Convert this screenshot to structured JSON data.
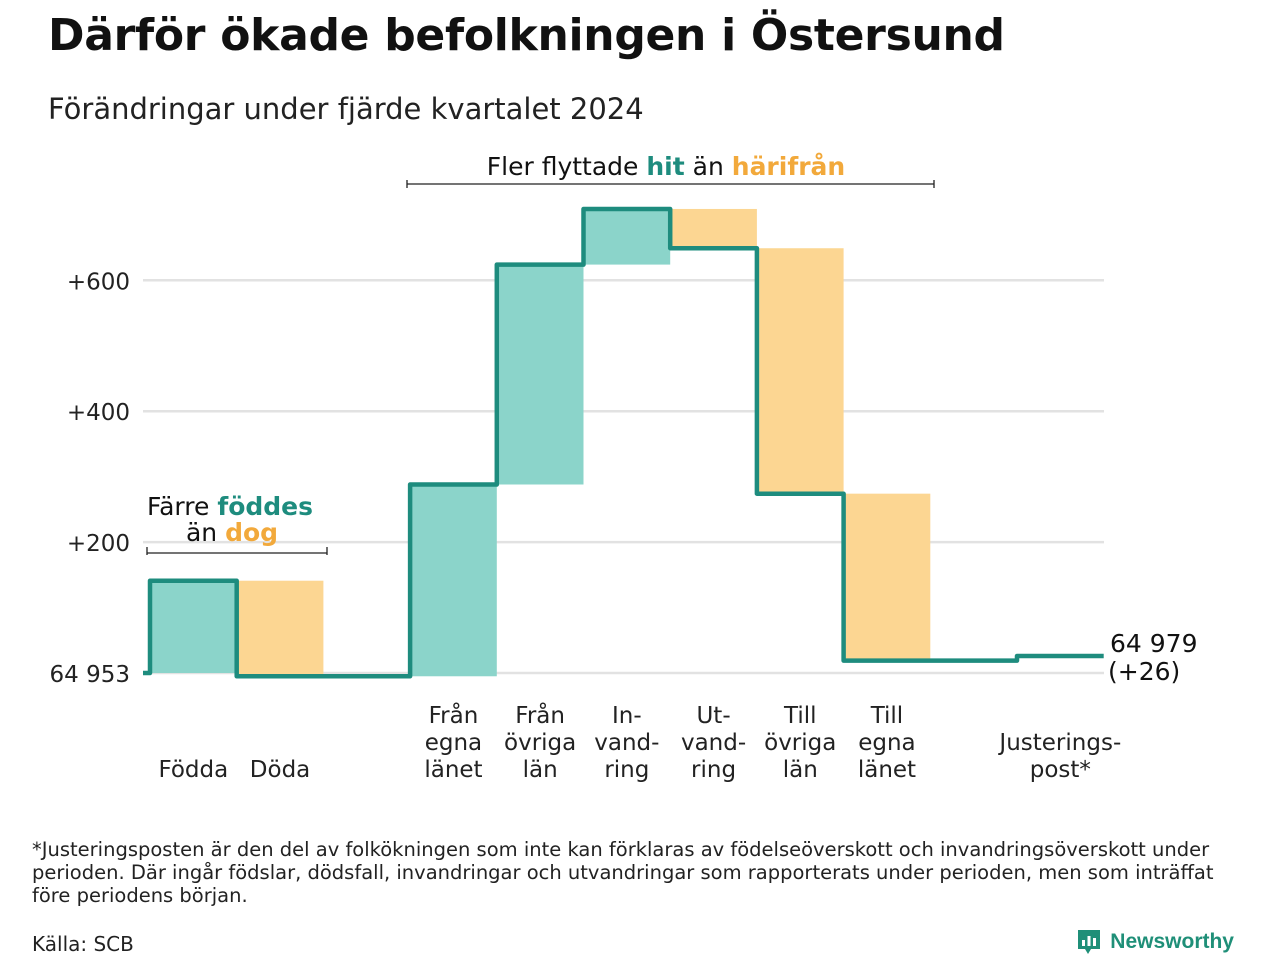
{
  "title": "Därför ökade befolkningen i Östersund",
  "subtitle": "Förändringar under fjärde kvartalet 2024",
  "colors": {
    "inflow": "#8bd4ca",
    "outflow": "#fcd692",
    "line": "#1e8c7e",
    "grid": "#e2e2e2",
    "hit": "#1e8c7e",
    "harifran": "#f2a93b"
  },
  "chart_data": {
    "type": "waterfall",
    "baseline": 64953,
    "baseline_label": "64 953",
    "ylim": [
      0,
      700
    ],
    "yticks": [
      {
        "value": 200,
        "label": "+200"
      },
      {
        "value": 400,
        "label": "+400"
      },
      {
        "value": 600,
        "label": "+600"
      }
    ],
    "steps": [
      {
        "category": "Födda",
        "lines": [
          "Födda"
        ],
        "kind": "in",
        "change": 141
      },
      {
        "category": "Döda",
        "lines": [
          "Döda"
        ],
        "kind": "out",
        "change": -146
      },
      {
        "category": "Från egna länet",
        "lines": [
          "Från",
          "egna",
          "länet"
        ],
        "kind": "in",
        "change": 293
      },
      {
        "category": "Från övriga län",
        "lines": [
          "Från",
          "övriga",
          "län"
        ],
        "kind": "in",
        "change": 336
      },
      {
        "category": "Invandring",
        "lines": [
          "In-",
          "vand-",
          "ring"
        ],
        "kind": "in",
        "change": 85
      },
      {
        "category": "Utvandring",
        "lines": [
          "Ut-",
          "vand-",
          "ring"
        ],
        "kind": "out",
        "change": -60
      },
      {
        "category": "Till övriga län",
        "lines": [
          "Till",
          "övriga",
          "län"
        ],
        "kind": "out",
        "change": -375
      },
      {
        "category": "Till egna länet",
        "lines": [
          "Till",
          "egna",
          "länet"
        ],
        "kind": "out",
        "change": -255
      },
      {
        "category": "Justeringspost*",
        "lines": [
          "Justerings-",
          "post*"
        ],
        "kind": "adj",
        "change": 7
      }
    ],
    "end_value_label": "64 979",
    "end_change_label": "(+26)",
    "annotations": {
      "natural": {
        "pre": "Färre",
        "hit": "föddes",
        "mid": "än",
        "harifran": "dog"
      },
      "migration": {
        "pre": "Fler flyttade",
        "hit": "hit",
        "mid": "än",
        "harifran": "härifrån"
      }
    },
    "grid": true
  },
  "footnote": "*Justeringsposten är den del av folkökningen som inte kan förklaras av födelseöverskott och invandringsöverskott under perioden. Där ingår födslar, dödsfall, invandringar och utvandringar som rapporterats under perioden, men som inträffat före periodens början.",
  "source": "Källa: SCB",
  "brand": {
    "name": "Newsworthy",
    "icon": "newsworthy-logo-icon"
  }
}
